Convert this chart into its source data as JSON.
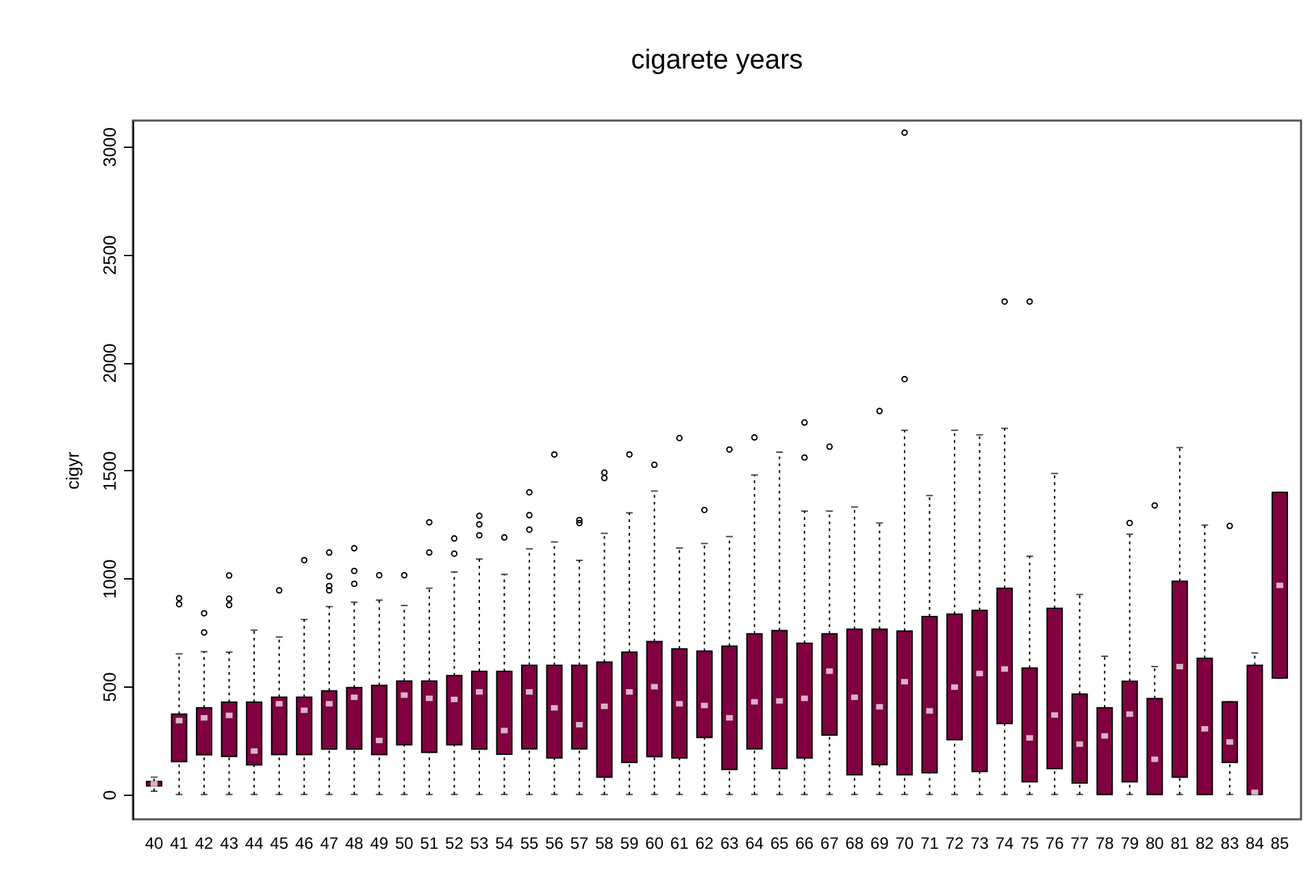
{
  "chart_data": {
    "type": "box",
    "title": "cigarete years",
    "ylabel": "cigyr",
    "categories": [
      "40",
      "41",
      "42",
      "43",
      "44",
      "45",
      "46",
      "47",
      "48",
      "49",
      "50",
      "51",
      "52",
      "53",
      "54",
      "55",
      "56",
      "57",
      "58",
      "59",
      "60",
      "61",
      "62",
      "63",
      "64",
      "65",
      "66",
      "67",
      "68",
      "69",
      "70",
      "71",
      "72",
      "73",
      "74",
      "75",
      "76",
      "77",
      "78",
      "79",
      "80",
      "81",
      "82",
      "83",
      "84",
      "85"
    ],
    "color": "#800040",
    "ylim": [
      -115,
      3120
    ],
    "yticks": [
      0,
      500,
      1000,
      1500,
      2000,
      2500,
      3000
    ],
    "grid": false,
    "boxes": [
      {
        "low": 15,
        "q1": 40,
        "median": 50,
        "q3": 60,
        "high": 80
      },
      {
        "low": 0,
        "q1": 152,
        "median": 342,
        "q3": 372,
        "high": 651,
        "outliers": [
          881,
          909
        ]
      },
      {
        "low": 0,
        "q1": 184,
        "median": 355,
        "q3": 401,
        "high": 661,
        "outliers": [
          750,
          839
        ]
      },
      {
        "low": 0,
        "q1": 176,
        "median": 366,
        "q3": 427,
        "high": 659,
        "outliers": [
          877,
          906,
          1014
        ]
      },
      {
        "low": 0,
        "q1": 137,
        "median": 201,
        "q3": 427,
        "high": 761
      },
      {
        "low": 0,
        "q1": 185,
        "median": 420,
        "q3": 450,
        "high": 729,
        "outliers": [
          945
        ]
      },
      {
        "low": 0,
        "q1": 185,
        "median": 390,
        "q3": 450,
        "high": 810,
        "outliers": [
          1085
        ]
      },
      {
        "low": 0,
        "q1": 210,
        "median": 420,
        "q3": 480,
        "high": 870,
        "outliers": [
          945,
          965,
          1010,
          1120
        ]
      },
      {
        "low": 0,
        "q1": 210,
        "median": 450,
        "q3": 495,
        "high": 890,
        "outliers": [
          975,
          1035,
          1140
        ]
      },
      {
        "low": 0,
        "q1": 185,
        "median": 250,
        "q3": 505,
        "high": 900,
        "outliers": [
          1015
        ]
      },
      {
        "low": 0,
        "q1": 230,
        "median": 460,
        "q3": 525,
        "high": 875,
        "outliers": [
          1015
        ]
      },
      {
        "low": 0,
        "q1": 195,
        "median": 445,
        "q3": 525,
        "high": 955,
        "outliers": [
          1120,
          1260
        ]
      },
      {
        "low": 0,
        "q1": 230,
        "median": 440,
        "q3": 550,
        "high": 1030,
        "outliers": [
          1115,
          1185
        ]
      },
      {
        "low": 0,
        "q1": 210,
        "median": 475,
        "q3": 570,
        "high": 1090,
        "outliers": [
          1200,
          1250,
          1290
        ]
      },
      {
        "low": 0,
        "q1": 186,
        "median": 296,
        "q3": 570,
        "high": 1019,
        "outliers": [
          1190
        ]
      },
      {
        "low": 0,
        "q1": 211,
        "median": 475,
        "q3": 598,
        "high": 1137,
        "outliers": [
          1226,
          1293,
          1399
        ]
      },
      {
        "low": 0,
        "q1": 169,
        "median": 401,
        "q3": 598,
        "high": 1169,
        "outliers": [
          1574
        ]
      },
      {
        "low": 0,
        "q1": 211,
        "median": 323,
        "q3": 598,
        "high": 1084,
        "outliers": [
          1257,
          1270
        ]
      },
      {
        "low": 0,
        "q1": 80,
        "median": 408,
        "q3": 613,
        "high": 1209,
        "outliers": [
          1465,
          1490
        ]
      },
      {
        "low": 0,
        "q1": 148,
        "median": 475,
        "q3": 659,
        "high": 1304,
        "outliers": [
          1574
        ]
      },
      {
        "low": 0,
        "q1": 175,
        "median": 499,
        "q3": 708,
        "high": 1405,
        "outliers": [
          1526
        ]
      },
      {
        "low": 0,
        "q1": 169,
        "median": 420,
        "q3": 674,
        "high": 1141,
        "outliers": [
          1650
        ]
      },
      {
        "low": 0,
        "q1": 264,
        "median": 412,
        "q3": 664,
        "high": 1162,
        "outliers": [
          1317
        ]
      },
      {
        "low": 0,
        "q1": 116,
        "median": 355,
        "q3": 687,
        "high": 1194,
        "outliers": [
          1597
        ]
      },
      {
        "low": 0,
        "q1": 211,
        "median": 429,
        "q3": 744,
        "high": 1479,
        "outliers": [
          1653
        ]
      },
      {
        "low": 0,
        "q1": 120,
        "median": 433,
        "q3": 759,
        "high": 1585
      },
      {
        "low": 0,
        "q1": 169,
        "median": 445,
        "q3": 700,
        "high": 1312,
        "outliers": [
          1560,
          1722
        ]
      },
      {
        "low": 0,
        "q1": 275,
        "median": 571,
        "q3": 744,
        "high": 1312,
        "outliers": [
          1610
        ]
      },
      {
        "low": 0,
        "q1": 91,
        "median": 450,
        "q3": 765,
        "high": 1331
      },
      {
        "low": 0,
        "q1": 138,
        "median": 406,
        "q3": 765,
        "high": 1257,
        "outliers": [
          1775
        ]
      },
      {
        "low": 0,
        "q1": 91,
        "median": 522,
        "q3": 756,
        "high": 1686,
        "outliers": [
          1923,
          3064
        ]
      },
      {
        "low": 0,
        "q1": 101,
        "median": 387,
        "q3": 824,
        "high": 1384
      },
      {
        "low": 0,
        "q1": 254,
        "median": 497,
        "q3": 835,
        "high": 1686
      },
      {
        "low": 0,
        "q1": 106,
        "median": 560,
        "q3": 852,
        "high": 1665
      },
      {
        "low": 0,
        "q1": 328,
        "median": 581,
        "q3": 955,
        "high": 1695,
        "outliers": [
          2282
        ]
      },
      {
        "low": 0,
        "q1": 59,
        "median": 262,
        "q3": 585,
        "high": 1103,
        "outliers": [
          2282
        ]
      },
      {
        "low": 0,
        "q1": 120,
        "median": 368,
        "q3": 862,
        "high": 1486
      },
      {
        "low": 0,
        "q1": 53,
        "median": 233,
        "q3": 465,
        "high": 926
      },
      {
        "low": 0,
        "q1": 0,
        "median": 271,
        "q3": 401,
        "high": 640
      },
      {
        "low": 0,
        "q1": 59,
        "median": 372,
        "q3": 524,
        "high": 1205,
        "outliers": [
          1257
        ]
      },
      {
        "low": 0,
        "q1": 0,
        "median": 163,
        "q3": 444,
        "high": 592,
        "outliers": [
          1338
        ]
      },
      {
        "low": 0,
        "q1": 80,
        "median": 592,
        "q3": 987,
        "high": 1606
      },
      {
        "low": 0,
        "q1": 0,
        "median": 304,
        "q3": 630,
        "high": 1247
      },
      {
        "low": 0,
        "q1": 148,
        "median": 243,
        "q3": 429,
        "high": 429,
        "outliers": [
          1243
        ]
      },
      {
        "low": 0,
        "q1": 0,
        "median": 10,
        "q3": 598,
        "high": 655
      },
      {
        "low": 539,
        "q1": 539,
        "median": 968,
        "q3": 1399,
        "high": 1399
      }
    ]
  }
}
